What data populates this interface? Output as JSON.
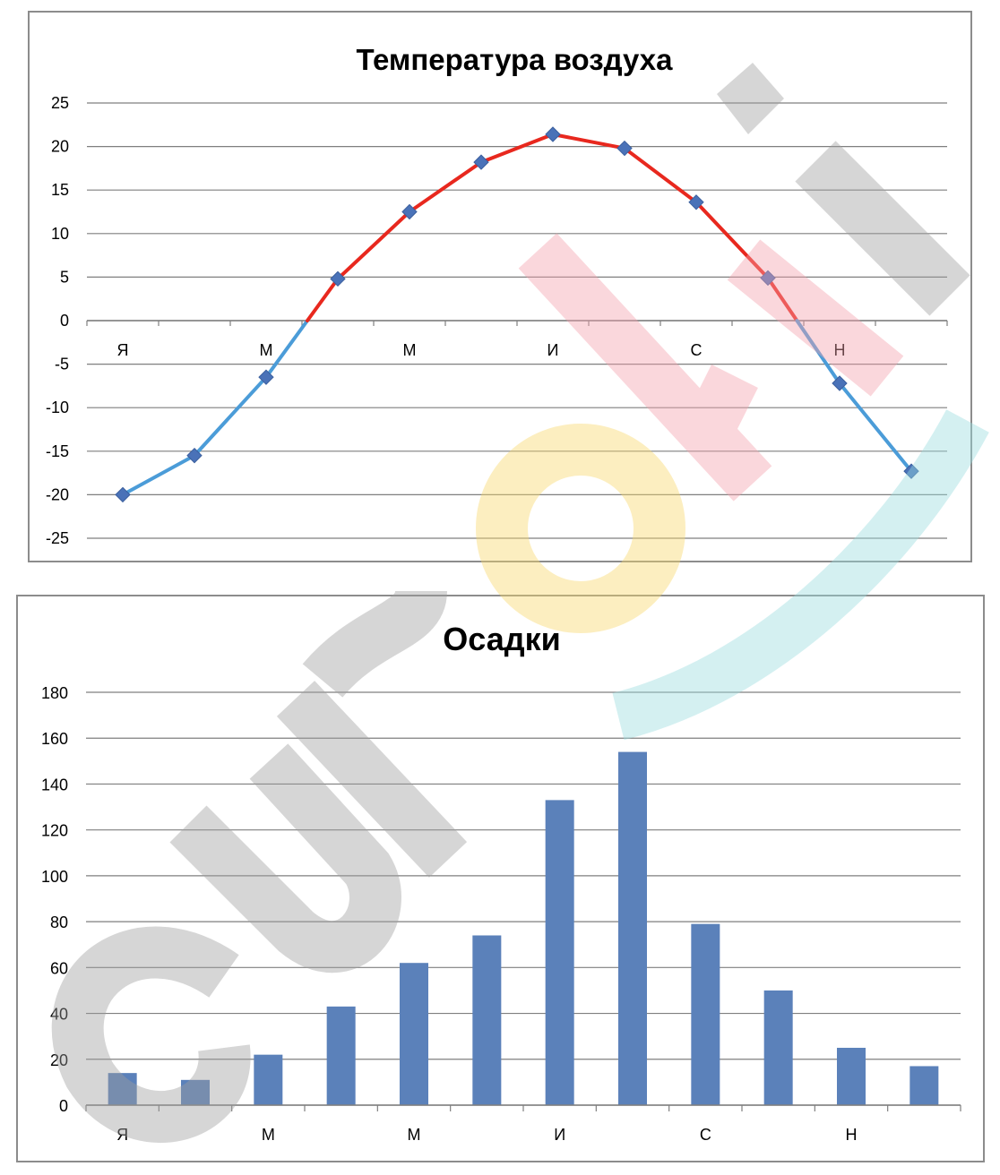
{
  "chart_data": [
    {
      "type": "line",
      "title": "Температура воздуха",
      "categories": [
        "Я",
        "",
        "М",
        "",
        "М",
        "",
        "И",
        "",
        "С",
        "",
        "Н",
        ""
      ],
      "series": [
        {
          "values": [
            -20,
            -15.5,
            -6.5,
            4.8,
            12.5,
            18.2,
            21.4,
            19.8,
            13.6,
            4.9,
            -7.2,
            -17.3
          ]
        }
      ],
      "ylim": [
        -25,
        25
      ],
      "yticks": [
        "25",
        "20",
        "15",
        "10",
        "5",
        "0",
        "-5",
        "-10",
        "-15",
        "-20",
        "-25"
      ],
      "grid": true,
      "colors": {
        "above_zero": "#e8281e",
        "below_zero": "#4b9cd8",
        "marker": "#4a72b8",
        "grid": "#7f7f7f"
      }
    },
    {
      "type": "bar",
      "title": "Осадки",
      "categories": [
        "Я",
        "",
        "М",
        "",
        "М",
        "",
        "И",
        "",
        "С",
        "",
        "Н",
        ""
      ],
      "values": [
        14,
        11,
        22,
        43,
        62,
        74,
        133,
        154,
        79,
        50,
        25,
        17
      ],
      "ylim": [
        0,
        180
      ],
      "yticks": [
        "180",
        "160",
        "140",
        "120",
        "100",
        "80",
        "60",
        "40",
        "20",
        "0"
      ],
      "grid": true,
      "colors": {
        "bar": "#5b81ba",
        "grid": "#7f7f7f"
      }
    }
  ]
}
